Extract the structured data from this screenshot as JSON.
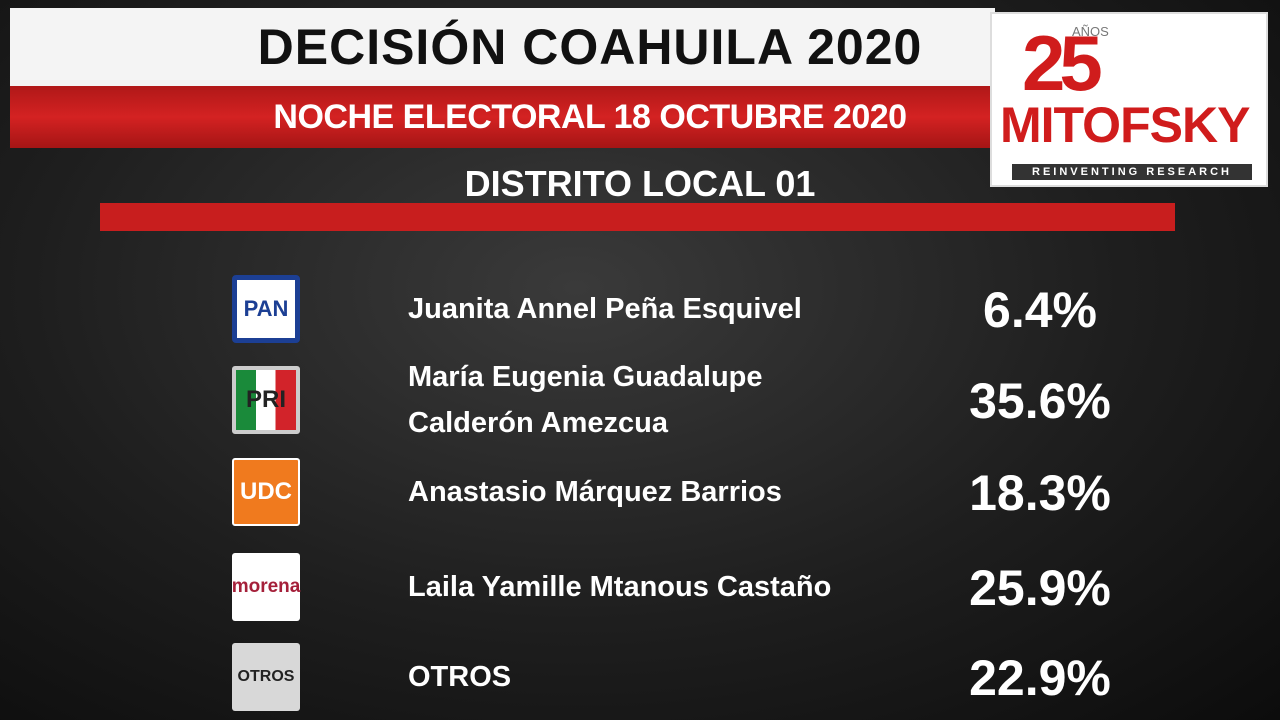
{
  "header": {
    "title": "DECISIÓN COAHUILA 2020",
    "subtitle": "NOCHE ELECTORAL 18 OCTUBRE 2020",
    "district": "DISTRITO LOCAL 01"
  },
  "logo": {
    "number": "25",
    "years": "AÑOS",
    "brand": "MITOFSKY",
    "tagline": "REINVENTING RESEARCH"
  },
  "rows": [
    {
      "party": "PAN",
      "name_lines": [
        "Juanita Annel Peña Esquivel"
      ],
      "percent": "6.4%"
    },
    {
      "party": "PRI",
      "name_lines": [
        "María Eugenia Guadalupe",
        "Calderón Amezcua"
      ],
      "percent": "35.6%"
    },
    {
      "party": "UDC",
      "name_lines": [
        "Anastasio Márquez Barrios"
      ],
      "percent": "18.3%"
    },
    {
      "party": "morena",
      "name_lines": [
        "Laila Yamille Mtanous Castaño"
      ],
      "percent": "25.9%"
    },
    {
      "party": "OTROS",
      "name_lines": [
        "OTROS"
      ],
      "percent": "22.9%"
    }
  ]
}
